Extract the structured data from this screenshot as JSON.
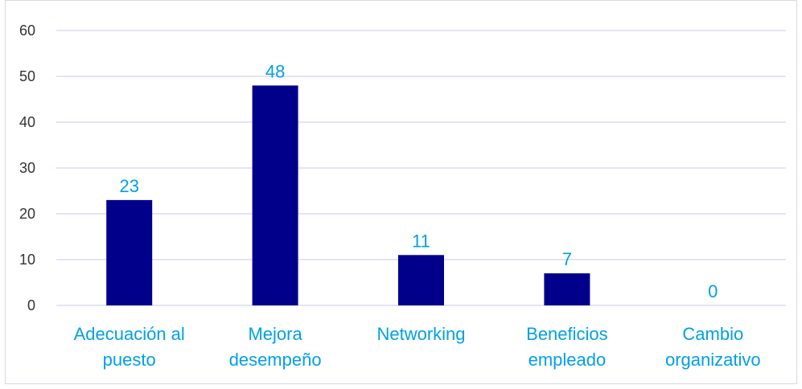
{
  "chart_data": {
    "type": "bar",
    "categories": [
      [
        "Adecuación al",
        "puesto"
      ],
      [
        "Mejora",
        "desempeño"
      ],
      [
        "Networking"
      ],
      [
        "Beneficios",
        "empleado"
      ],
      [
        "Cambio",
        "organizativo"
      ]
    ],
    "values": [
      23,
      48,
      11,
      7,
      0
    ],
    "data_labels": [
      "23",
      "48",
      "11",
      "7",
      "0"
    ],
    "title": "",
    "xlabel": "",
    "ylabel": "",
    "ylim": [
      0,
      60
    ],
    "yticks": [
      0,
      10,
      20,
      30,
      40,
      50,
      60
    ],
    "grid": true,
    "legend": "none",
    "colors": {
      "bar": "#00008b",
      "gridline": "#c9c9ef",
      "axis": "#c9c9ef",
      "label": "#00a0e6",
      "tick": "#333333"
    }
  }
}
